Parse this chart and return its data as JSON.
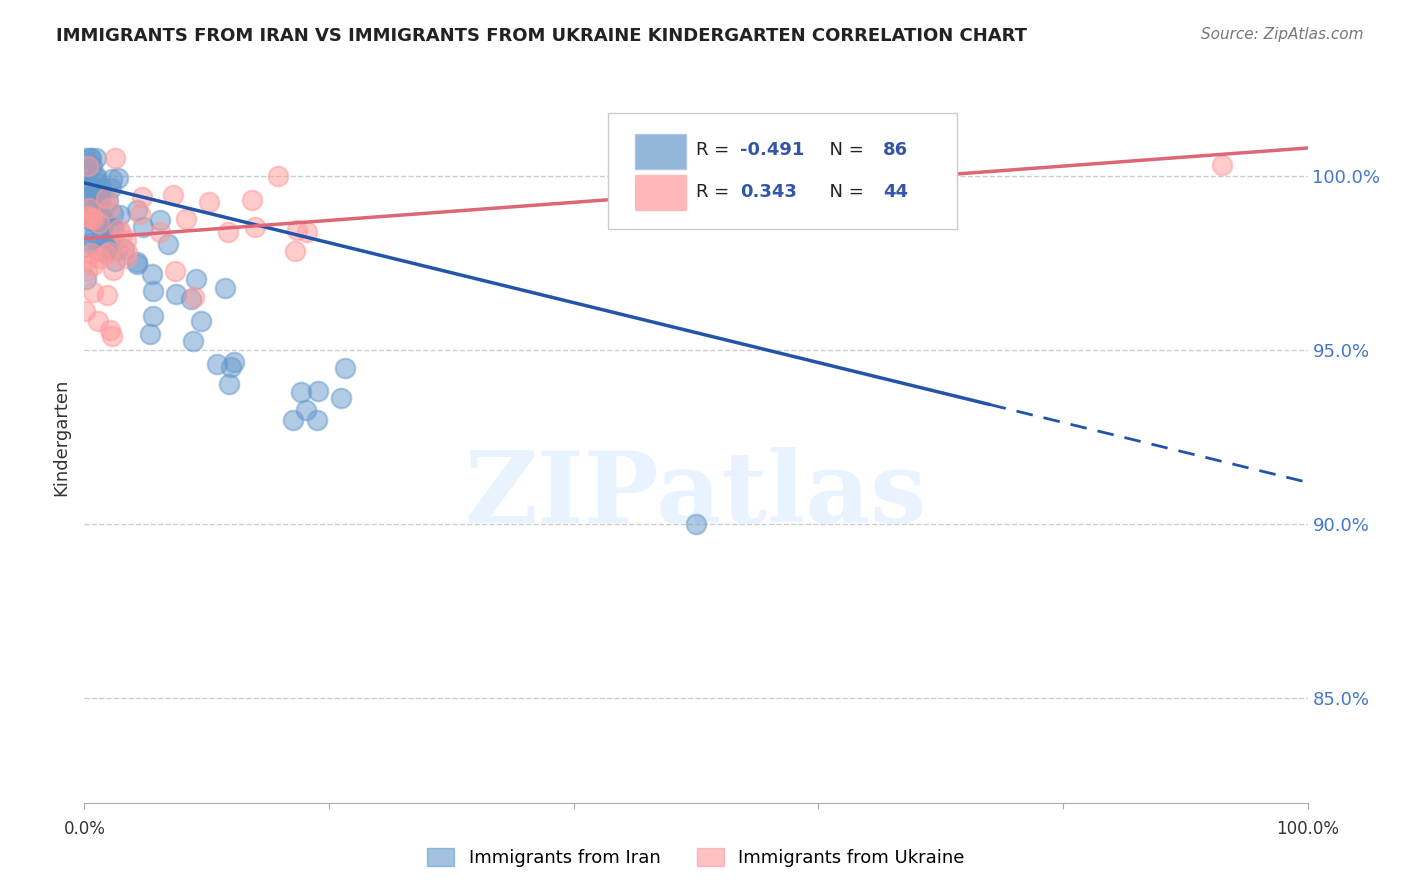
{
  "title": "IMMIGRANTS FROM IRAN VS IMMIGRANTS FROM UKRAINE KINDERGARTEN CORRELATION CHART",
  "source": "Source: ZipAtlas.com",
  "ylabel": "Kindergarten",
  "iran_R": -0.491,
  "iran_N": 86,
  "ukraine_R": 0.343,
  "ukraine_N": 44,
  "iran_color": "#6699CC",
  "ukraine_color": "#FF9999",
  "iran_line_color": "#2255AA",
  "ukraine_line_color": "#DD6677",
  "background_color": "#FFFFFF",
  "legend_iran": "Immigrants from Iran",
  "legend_ukraine": "Immigrants from Ukraine",
  "ylim_min": 82,
  "ylim_max": 103,
  "xlim_min": 0,
  "xlim_max": 100,
  "yticks": [
    85,
    90,
    95,
    100
  ],
  "ytick_labels": [
    "85.0%",
    "90.0%",
    "95.0%",
    "100.0%"
  ],
  "iran_line_x0": 0,
  "iran_line_y0": 99.8,
  "iran_line_x1": 100,
  "iran_line_y1": 91.2,
  "iran_solid_end": 74,
  "ukraine_line_x0": 0,
  "ukraine_line_y0": 98.2,
  "ukraine_line_x1": 100,
  "ukraine_line_y1": 100.8,
  "iran_outlier_x": 50,
  "iran_outlier_y": 90.0,
  "ukraine_outlier_x": 93,
  "ukraine_outlier_y": 100.3
}
